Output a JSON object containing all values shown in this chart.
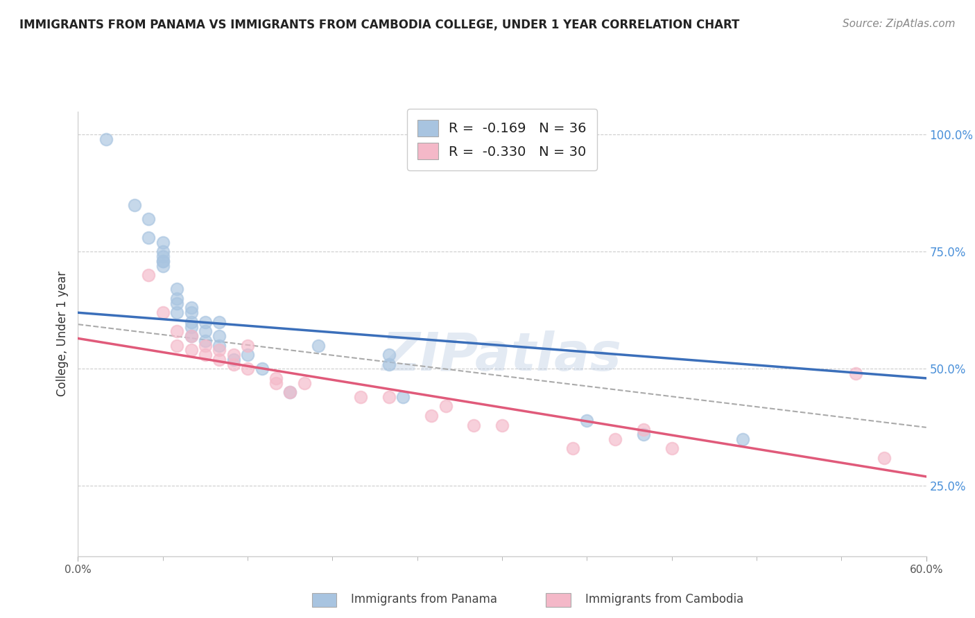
{
  "title": "IMMIGRANTS FROM PANAMA VS IMMIGRANTS FROM CAMBODIA COLLEGE, UNDER 1 YEAR CORRELATION CHART",
  "source": "Source: ZipAtlas.com",
  "ylabel": "College, Under 1 year",
  "r_panama": -0.169,
  "n_panama": 36,
  "r_cambodia": -0.33,
  "n_cambodia": 30,
  "xlim": [
    0.0,
    0.6
  ],
  "ylim": [
    0.1,
    1.05
  ],
  "xtick_labels": [
    "0.0%",
    "",
    "",
    "",
    "",
    "",
    "",
    "",
    "",
    "",
    "",
    "60.0%"
  ],
  "ytick_labels": [
    "25.0%",
    "50.0%",
    "75.0%",
    "100.0%"
  ],
  "ytick_vals": [
    0.25,
    0.5,
    0.75,
    1.0
  ],
  "color_panama": "#a8c4e0",
  "color_cambodia": "#f4b8c8",
  "line_color_panama": "#3b6fba",
  "line_color_cambodia": "#e05a7a",
  "background_color": "#ffffff",
  "grid_color": "#cccccc",
  "watermark": "ZIPatlas",
  "panama_x": [
    0.02,
    0.04,
    0.05,
    0.05,
    0.06,
    0.06,
    0.06,
    0.06,
    0.06,
    0.06,
    0.07,
    0.07,
    0.07,
    0.07,
    0.08,
    0.08,
    0.08,
    0.08,
    0.08,
    0.09,
    0.09,
    0.09,
    0.1,
    0.1,
    0.1,
    0.11,
    0.12,
    0.13,
    0.15,
    0.17,
    0.22,
    0.22,
    0.23,
    0.36,
    0.4,
    0.47
  ],
  "panama_y": [
    0.99,
    0.85,
    0.82,
    0.78,
    0.77,
    0.75,
    0.74,
    0.73,
    0.73,
    0.72,
    0.67,
    0.65,
    0.64,
    0.62,
    0.63,
    0.62,
    0.6,
    0.59,
    0.57,
    0.6,
    0.58,
    0.56,
    0.6,
    0.57,
    0.55,
    0.52,
    0.53,
    0.5,
    0.45,
    0.55,
    0.53,
    0.51,
    0.44,
    0.39,
    0.36,
    0.35
  ],
  "cambodia_x": [
    0.05,
    0.06,
    0.07,
    0.07,
    0.08,
    0.08,
    0.09,
    0.09,
    0.1,
    0.1,
    0.11,
    0.11,
    0.12,
    0.12,
    0.14,
    0.14,
    0.15,
    0.16,
    0.2,
    0.22,
    0.25,
    0.26,
    0.28,
    0.3,
    0.35,
    0.38,
    0.4,
    0.42,
    0.55,
    0.57
  ],
  "cambodia_y": [
    0.7,
    0.62,
    0.58,
    0.55,
    0.57,
    0.54,
    0.55,
    0.53,
    0.54,
    0.52,
    0.53,
    0.51,
    0.5,
    0.55,
    0.47,
    0.48,
    0.45,
    0.47,
    0.44,
    0.44,
    0.4,
    0.42,
    0.38,
    0.38,
    0.33,
    0.35,
    0.37,
    0.33,
    0.49,
    0.31
  ],
  "legend_panama": "Immigrants from Panama",
  "legend_cambodia": "Immigrants from Cambodia",
  "blue_line_x0": 0.0,
  "blue_line_y0": 0.62,
  "blue_line_x1": 0.6,
  "blue_line_y1": 0.48,
  "pink_line_x0": 0.0,
  "pink_line_y0": 0.565,
  "pink_line_x1": 0.6,
  "pink_line_y1": 0.27,
  "dash_line_x0": 0.0,
  "dash_line_y0": 0.595,
  "dash_line_x1": 0.6,
  "dash_line_y1": 0.375
}
